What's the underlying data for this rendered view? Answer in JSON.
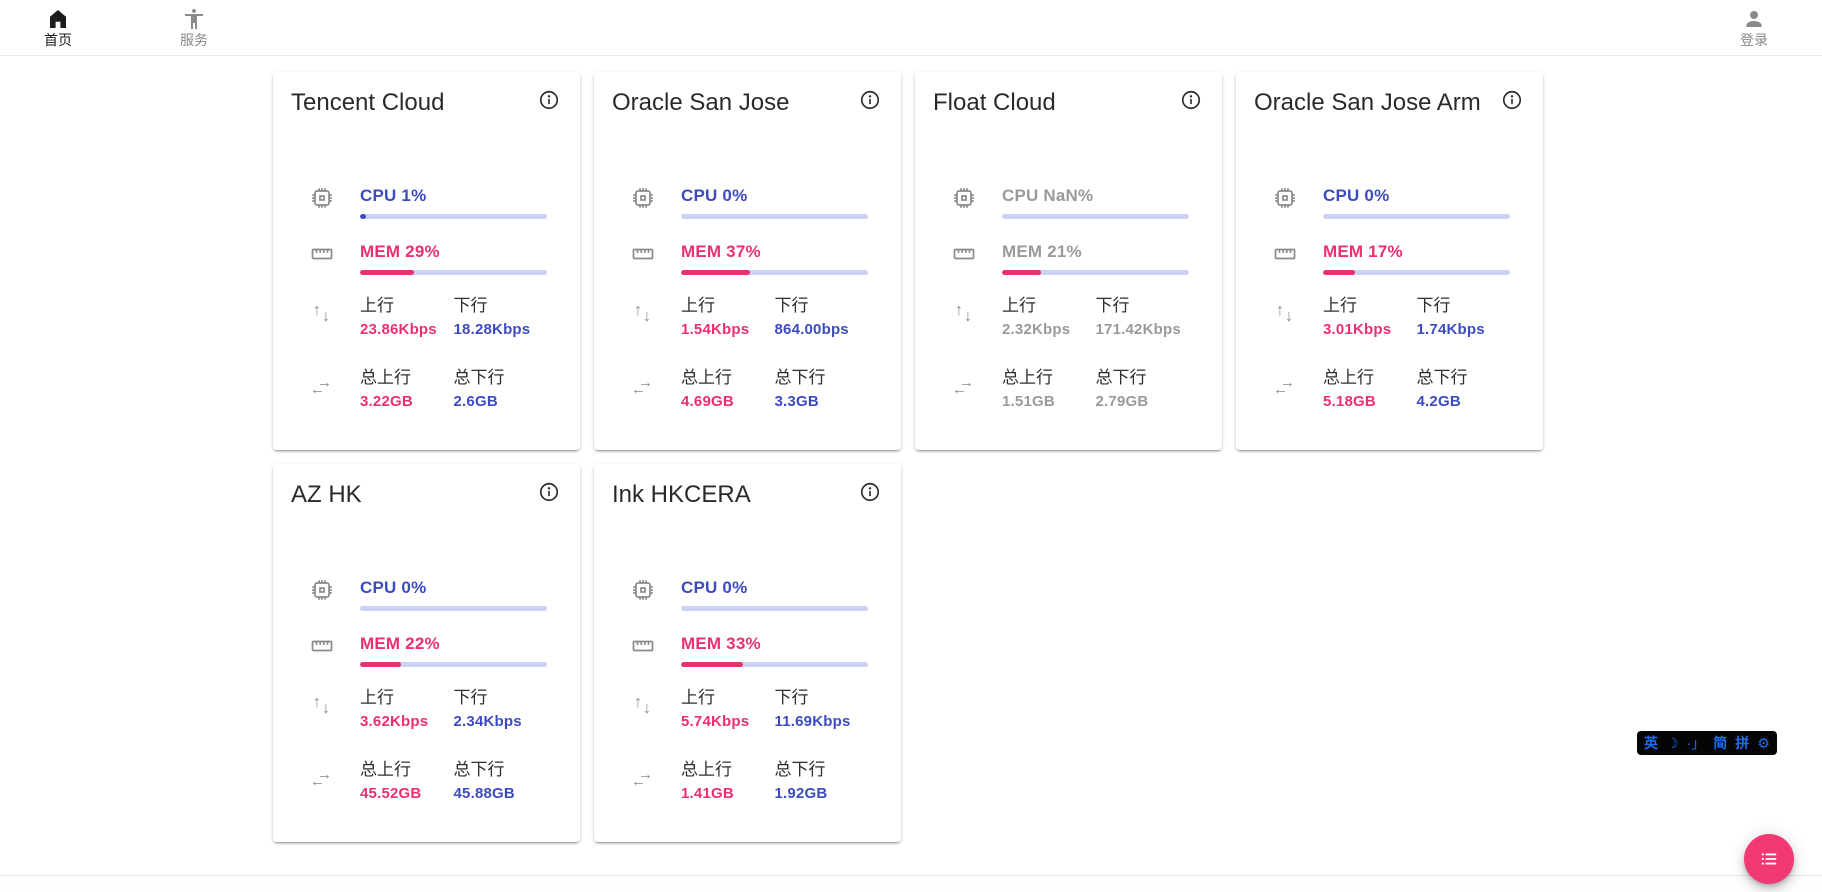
{
  "nav": {
    "home": {
      "label": "首页"
    },
    "services": {
      "label": "服务"
    },
    "login": {
      "label": "登录"
    }
  },
  "labels": {
    "up": "上行",
    "down": "下行",
    "total_up": "总上行",
    "total_down": "总下行"
  },
  "icons": {
    "up_arrow": "↑",
    "down_arrow": "↓",
    "left_arrow": "←",
    "right_arrow": "→"
  },
  "colors": {
    "cpu_blue": "#3c4cc0",
    "mem_pink": "#ee2f6e",
    "bar_track": "#cdd2f1",
    "offline_gray": "#9a9a9a",
    "fab_pink": "#f13a74",
    "ime_blue": "#1d6ff2"
  },
  "servers": [
    {
      "name": "Tencent Cloud",
      "css_class": "card",
      "cpu_text": "CPU 1%",
      "cpu_pct": 1,
      "mem_text": "MEM 29%",
      "mem_pct": 29,
      "up": "23.86Kbps",
      "down": "18.28Kbps",
      "total_up": "3.22GB",
      "total_down": "2.6GB"
    },
    {
      "name": "Oracle San Jose",
      "css_class": "card",
      "cpu_text": "CPU 0%",
      "cpu_pct": 0,
      "mem_text": "MEM 37%",
      "mem_pct": 37,
      "up": "1.54Kbps",
      "down": "864.00bps",
      "total_up": "4.69GB",
      "total_down": "3.3GB"
    },
    {
      "name": "Float Cloud",
      "css_class": "card offline",
      "cpu_text": "CPU NaN%",
      "cpu_pct": null,
      "mem_text": "MEM 21%",
      "mem_pct": 21,
      "up": "2.32Kbps",
      "down": "171.42Kbps",
      "total_up": "1.51GB",
      "total_down": "2.79GB"
    },
    {
      "name": "Oracle San Jose Arm",
      "css_class": "card",
      "cpu_text": "CPU 0%",
      "cpu_pct": 0,
      "mem_text": "MEM 17%",
      "mem_pct": 17,
      "up": "3.01Kbps",
      "down": "1.74Kbps",
      "total_up": "5.18GB",
      "total_down": "4.2GB"
    },
    {
      "name": "AZ HK",
      "css_class": "card",
      "cpu_text": "CPU 0%",
      "cpu_pct": 0,
      "mem_text": "MEM 22%",
      "mem_pct": 22,
      "up": "3.62Kbps",
      "down": "2.34Kbps",
      "total_up": "45.52GB",
      "total_down": "45.88GB"
    },
    {
      "name": "Ink HKCERA",
      "css_class": "card",
      "cpu_text": "CPU 0%",
      "cpu_pct": 0,
      "mem_text": "MEM 33%",
      "mem_pct": 33,
      "up": "5.74Kbps",
      "down": "11.69Kbps",
      "total_up": "1.41GB",
      "total_down": "1.92GB"
    }
  ],
  "ime": {
    "items": [
      "英",
      "☽",
      "·」",
      "简",
      "拼",
      "⚙"
    ]
  }
}
